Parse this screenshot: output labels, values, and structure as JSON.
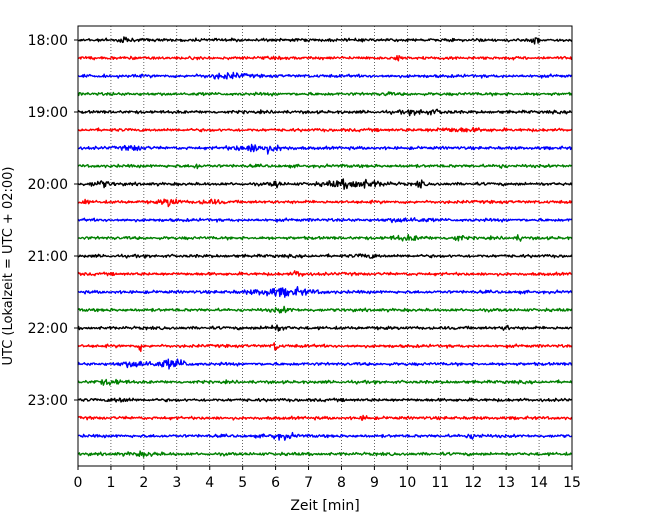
{
  "chart_data": {
    "type": "line",
    "title": "",
    "xlabel": "Zeit  [min]",
    "ylabel": "UTC (Lokalzeit = UTC + 02:00)",
    "xlim": [
      0,
      15
    ],
    "x_ticks": [
      0,
      1,
      2,
      3,
      4,
      5,
      6,
      7,
      8,
      9,
      10,
      11,
      12,
      13,
      14,
      15
    ],
    "y_tick_labels": [
      "18:00",
      "19:00",
      "20:00",
      "21:00",
      "22:00",
      "23:00"
    ],
    "grid": "vertical dotted",
    "trace_interval_min": 15,
    "start_time": "18:00",
    "color_cycle": [
      "#000000",
      "#ff0000",
      "#0000ff",
      "#008000"
    ],
    "traces": [
      {
        "start": "18:00",
        "color": "#000000"
      },
      {
        "start": "18:15",
        "color": "#ff0000"
      },
      {
        "start": "18:30",
        "color": "#0000ff"
      },
      {
        "start": "18:45",
        "color": "#008000"
      },
      {
        "start": "19:00",
        "color": "#000000"
      },
      {
        "start": "19:15",
        "color": "#ff0000"
      },
      {
        "start": "19:30",
        "color": "#0000ff"
      },
      {
        "start": "19:45",
        "color": "#008000"
      },
      {
        "start": "20:00",
        "color": "#000000"
      },
      {
        "start": "20:15",
        "color": "#ff0000"
      },
      {
        "start": "20:30",
        "color": "#0000ff"
      },
      {
        "start": "20:45",
        "color": "#008000"
      },
      {
        "start": "21:00",
        "color": "#000000"
      },
      {
        "start": "21:15",
        "color": "#ff0000"
      },
      {
        "start": "21:30",
        "color": "#0000ff"
      },
      {
        "start": "21:45",
        "color": "#008000"
      },
      {
        "start": "22:00",
        "color": "#000000"
      },
      {
        "start": "22:15",
        "color": "#ff0000"
      },
      {
        "start": "22:30",
        "color": "#0000ff"
      },
      {
        "start": "22:45",
        "color": "#008000"
      },
      {
        "start": "23:00",
        "color": "#000000"
      },
      {
        "start": "23:15",
        "color": "#ff0000"
      },
      {
        "start": "23:30",
        "color": "#0000ff"
      },
      {
        "start": "23:45",
        "color": "#008000"
      }
    ]
  }
}
